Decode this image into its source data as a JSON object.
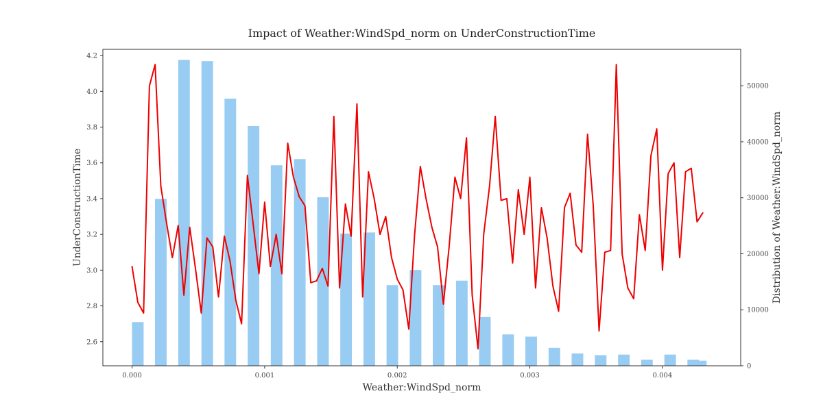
{
  "chart_data": {
    "type": "bar+line",
    "title": "Impact of Weather:WindSpd_norm on UnderConstructionTime",
    "xlabel": "Weather:WindSpd_norm",
    "ylabel_left": "UnderConstructionTime",
    "ylabel_right": "Distribution of Weather:WindSpd_norm",
    "xlim": [
      -0.00022,
      0.00459
    ],
    "ylim_left": [
      2.465,
      4.235
    ],
    "ylim_right": [
      0,
      56500
    ],
    "x_ticks": [
      0.0,
      0.001,
      0.002,
      0.003,
      0.004
    ],
    "x_tick_labels": [
      "0.000",
      "0.001",
      "0.002",
      "0.003",
      "0.004"
    ],
    "y_left_ticks": [
      2.6,
      2.8,
      3.0,
      3.2,
      3.4,
      3.6,
      3.8,
      4.0,
      4.2
    ],
    "y_left_tick_labels": [
      "2.6",
      "2.8",
      "3.0",
      "3.2",
      "3.4",
      "3.6",
      "3.8",
      "4.0",
      "4.2"
    ],
    "y_right_ticks": [
      0,
      10000,
      20000,
      30000,
      40000,
      50000
    ],
    "y_right_tick_labels": [
      "0",
      "10000",
      "20000",
      "30000",
      "40000",
      "50000"
    ],
    "colors": {
      "bars": "#99CCF2",
      "line": "#EE0000"
    },
    "histogram": {
      "name": "Distribution of Weather:WindSpd_norm",
      "bar_width": 8.75e-05,
      "bin_centers": [
        4.35e-05,
        0.000217,
        0.000392,
        0.000567,
        0.000741,
        0.000916,
        0.00109,
        0.001265,
        0.00144,
        0.001614,
        0.001789,
        0.001963,
        0.002138,
        0.002312,
        0.002487,
        0.002661,
        0.002836,
        0.00301,
        0.003185,
        0.003359,
        0.003534,
        0.003709,
        0.003883,
        0.004058,
        0.004232,
        0.004289
      ],
      "counts": [
        7800,
        29800,
        54600,
        54400,
        47700,
        42800,
        35800,
        36900,
        30100,
        23600,
        23800,
        14400,
        17100,
        14400,
        15200,
        8700,
        5600,
        5200,
        3200,
        2200,
        1900,
        2000,
        1100,
        2000,
        1100,
        900
      ]
    },
    "series": [
      {
        "name": "UnderConstructionTime",
        "type": "line",
        "x": [
          0.0,
          4.35e-05,
          8.7e-05,
          0.000131,
          0.000174,
          0.000217,
          0.000261,
          0.000304,
          0.000348,
          0.000391,
          0.000435,
          0.000478,
          0.000522,
          0.000565,
          0.000609,
          0.000652,
          0.000696,
          0.000739,
          0.000783,
          0.000826,
          0.00087,
          0.000913,
          0.000957,
          0.001,
          0.001043,
          0.001087,
          0.00113,
          0.001174,
          0.001217,
          0.001261,
          0.001304,
          0.001348,
          0.001391,
          0.001435,
          0.001478,
          0.001522,
          0.001565,
          0.001609,
          0.001652,
          0.001696,
          0.001739,
          0.001783,
          0.001826,
          0.00187,
          0.001913,
          0.001957,
          0.002,
          0.002043,
          0.002087,
          0.00213,
          0.002174,
          0.002217,
          0.002261,
          0.002304,
          0.002348,
          0.002391,
          0.002435,
          0.002478,
          0.002522,
          0.002565,
          0.002609,
          0.002652,
          0.002696,
          0.002739,
          0.002783,
          0.002826,
          0.00287,
          0.002913,
          0.002957,
          0.003,
          0.003043,
          0.003087,
          0.00313,
          0.003174,
          0.003217,
          0.003261,
          0.003304,
          0.003348,
          0.003391,
          0.003435,
          0.003478,
          0.003522,
          0.003565,
          0.003609,
          0.003652,
          0.003696,
          0.003739,
          0.003783,
          0.003826,
          0.00387,
          0.003913,
          0.003957,
          0.004,
          0.004043,
          0.004087,
          0.00413,
          0.004174,
          0.004217,
          0.004261,
          0.004304
        ],
        "y": [
          3.02,
          2.82,
          2.76,
          4.03,
          4.15,
          3.47,
          3.26,
          3.07,
          3.25,
          2.86,
          3.24,
          3.01,
          2.76,
          3.18,
          3.13,
          2.85,
          3.19,
          3.05,
          2.83,
          2.7,
          3.53,
          3.26,
          2.98,
          3.38,
          3.02,
          3.2,
          2.98,
          3.71,
          3.52,
          3.41,
          3.36,
          2.93,
          2.94,
          3.01,
          2.91,
          3.86,
          2.9,
          3.37,
          3.19,
          3.93,
          2.85,
          3.55,
          3.4,
          3.2,
          3.3,
          3.07,
          2.95,
          2.89,
          2.67,
          3.19,
          3.58,
          3.4,
          3.24,
          3.13,
          2.81,
          3.13,
          3.52,
          3.4,
          3.74,
          2.86,
          2.56,
          3.2,
          3.47,
          3.86,
          3.39,
          3.4,
          3.04,
          3.45,
          3.2,
          3.52,
          2.9,
          3.35,
          3.18,
          2.91,
          2.77,
          3.35,
          3.43,
          3.14,
          3.1,
          3.76,
          3.36,
          2.66,
          3.1,
          3.11,
          4.15,
          3.09,
          2.9,
          2.84,
          3.31,
          3.11,
          3.64,
          3.79,
          3.0,
          3.54,
          3.6,
          3.07,
          3.55,
          3.57,
          3.27,
          3.32
        ]
      }
    ]
  }
}
